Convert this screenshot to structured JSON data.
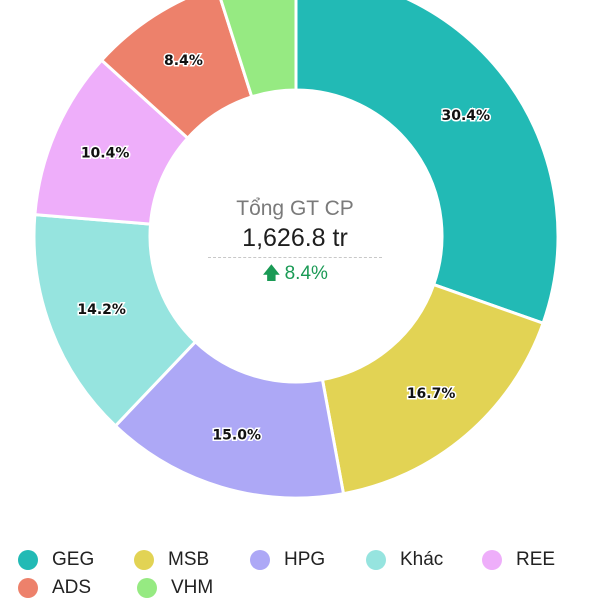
{
  "chart_data": {
    "type": "pie",
    "donut": true,
    "center": {
      "title": "Tổng GT CP",
      "value": "1,626.8 tr",
      "change": "8.4%",
      "change_direction": "up",
      "change_color": "#1a9a55"
    },
    "slices": [
      {
        "name": "GEG",
        "value": 30.4,
        "label": "30.4%",
        "color": "#22bab5"
      },
      {
        "name": "MSB",
        "value": 16.7,
        "label": "16.7%",
        "color": "#e2d354"
      },
      {
        "name": "HPG",
        "value": 15.0,
        "label": "15.0%",
        "color": "#ada8f6"
      },
      {
        "name": "Khác",
        "value": 14.2,
        "label": "14.2%",
        "color": "#96e4df"
      },
      {
        "name": "REE",
        "value": 10.4,
        "label": "10.4%",
        "color": "#eeaefa"
      },
      {
        "name": "ADS",
        "value": 8.4,
        "label": "8.4%",
        "color": "#ed816b"
      },
      {
        "name": "VHM",
        "value": 4.9,
        "label": "",
        "color": "#96ea82"
      }
    ],
    "legend": [
      [
        {
          "name": "GEG",
          "color": "#22bab5"
        },
        {
          "name": "MSB",
          "color": "#e2d354"
        },
        {
          "name": "HPG",
          "color": "#ada8f6"
        },
        {
          "name": "Khác",
          "color": "#96e4df"
        },
        {
          "name": "REE",
          "color": "#eeaefa"
        }
      ],
      [
        {
          "name": "ADS",
          "color": "#ed816b"
        },
        {
          "name": "VHM",
          "color": "#96ea82"
        }
      ]
    ],
    "legend_position": "bottom"
  }
}
